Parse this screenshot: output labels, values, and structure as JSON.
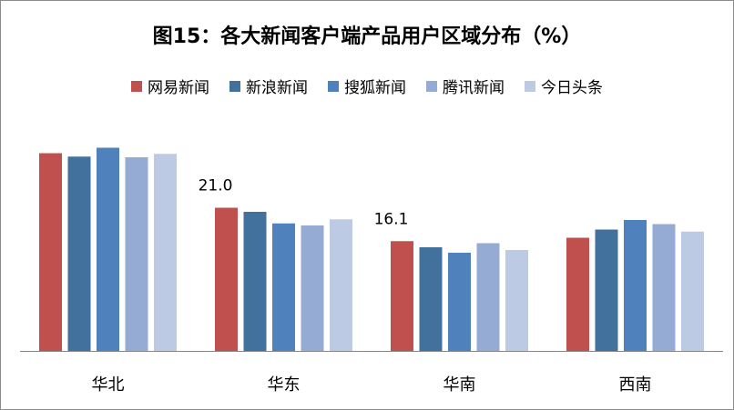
{
  "chart_data": {
    "type": "bar",
    "title": "图15：各大新闻客户端产品用户区域分布（%）",
    "categories": [
      "华北",
      "华东",
      "华南",
      "西南"
    ],
    "series": [
      {
        "name": "网易新闻",
        "color": "#c0504d",
        "values": [
          29.0,
          21.0,
          16.1,
          16.6
        ]
      },
      {
        "name": "新浪新闻",
        "color": "#41719c",
        "values": [
          28.5,
          20.4,
          15.2,
          17.8
        ]
      },
      {
        "name": "搜狐新闻",
        "color": "#4f81bd",
        "values": [
          29.8,
          18.7,
          14.4,
          19.2
        ]
      },
      {
        "name": "腾讯新闻",
        "color": "#95abd3",
        "values": [
          28.4,
          18.4,
          15.8,
          18.6
        ]
      },
      {
        "name": "今日头条",
        "color": "#bccbe3",
        "values": [
          28.9,
          19.3,
          14.8,
          17.5
        ]
      }
    ],
    "data_labels": [
      {
        "category": "华东",
        "series": "网易新闻",
        "text": "21.0"
      },
      {
        "category": "华南",
        "series": "网易新闻",
        "text": "16.1"
      }
    ],
    "ylim": [
      0,
      32
    ],
    "grid": false,
    "legend": "top"
  }
}
